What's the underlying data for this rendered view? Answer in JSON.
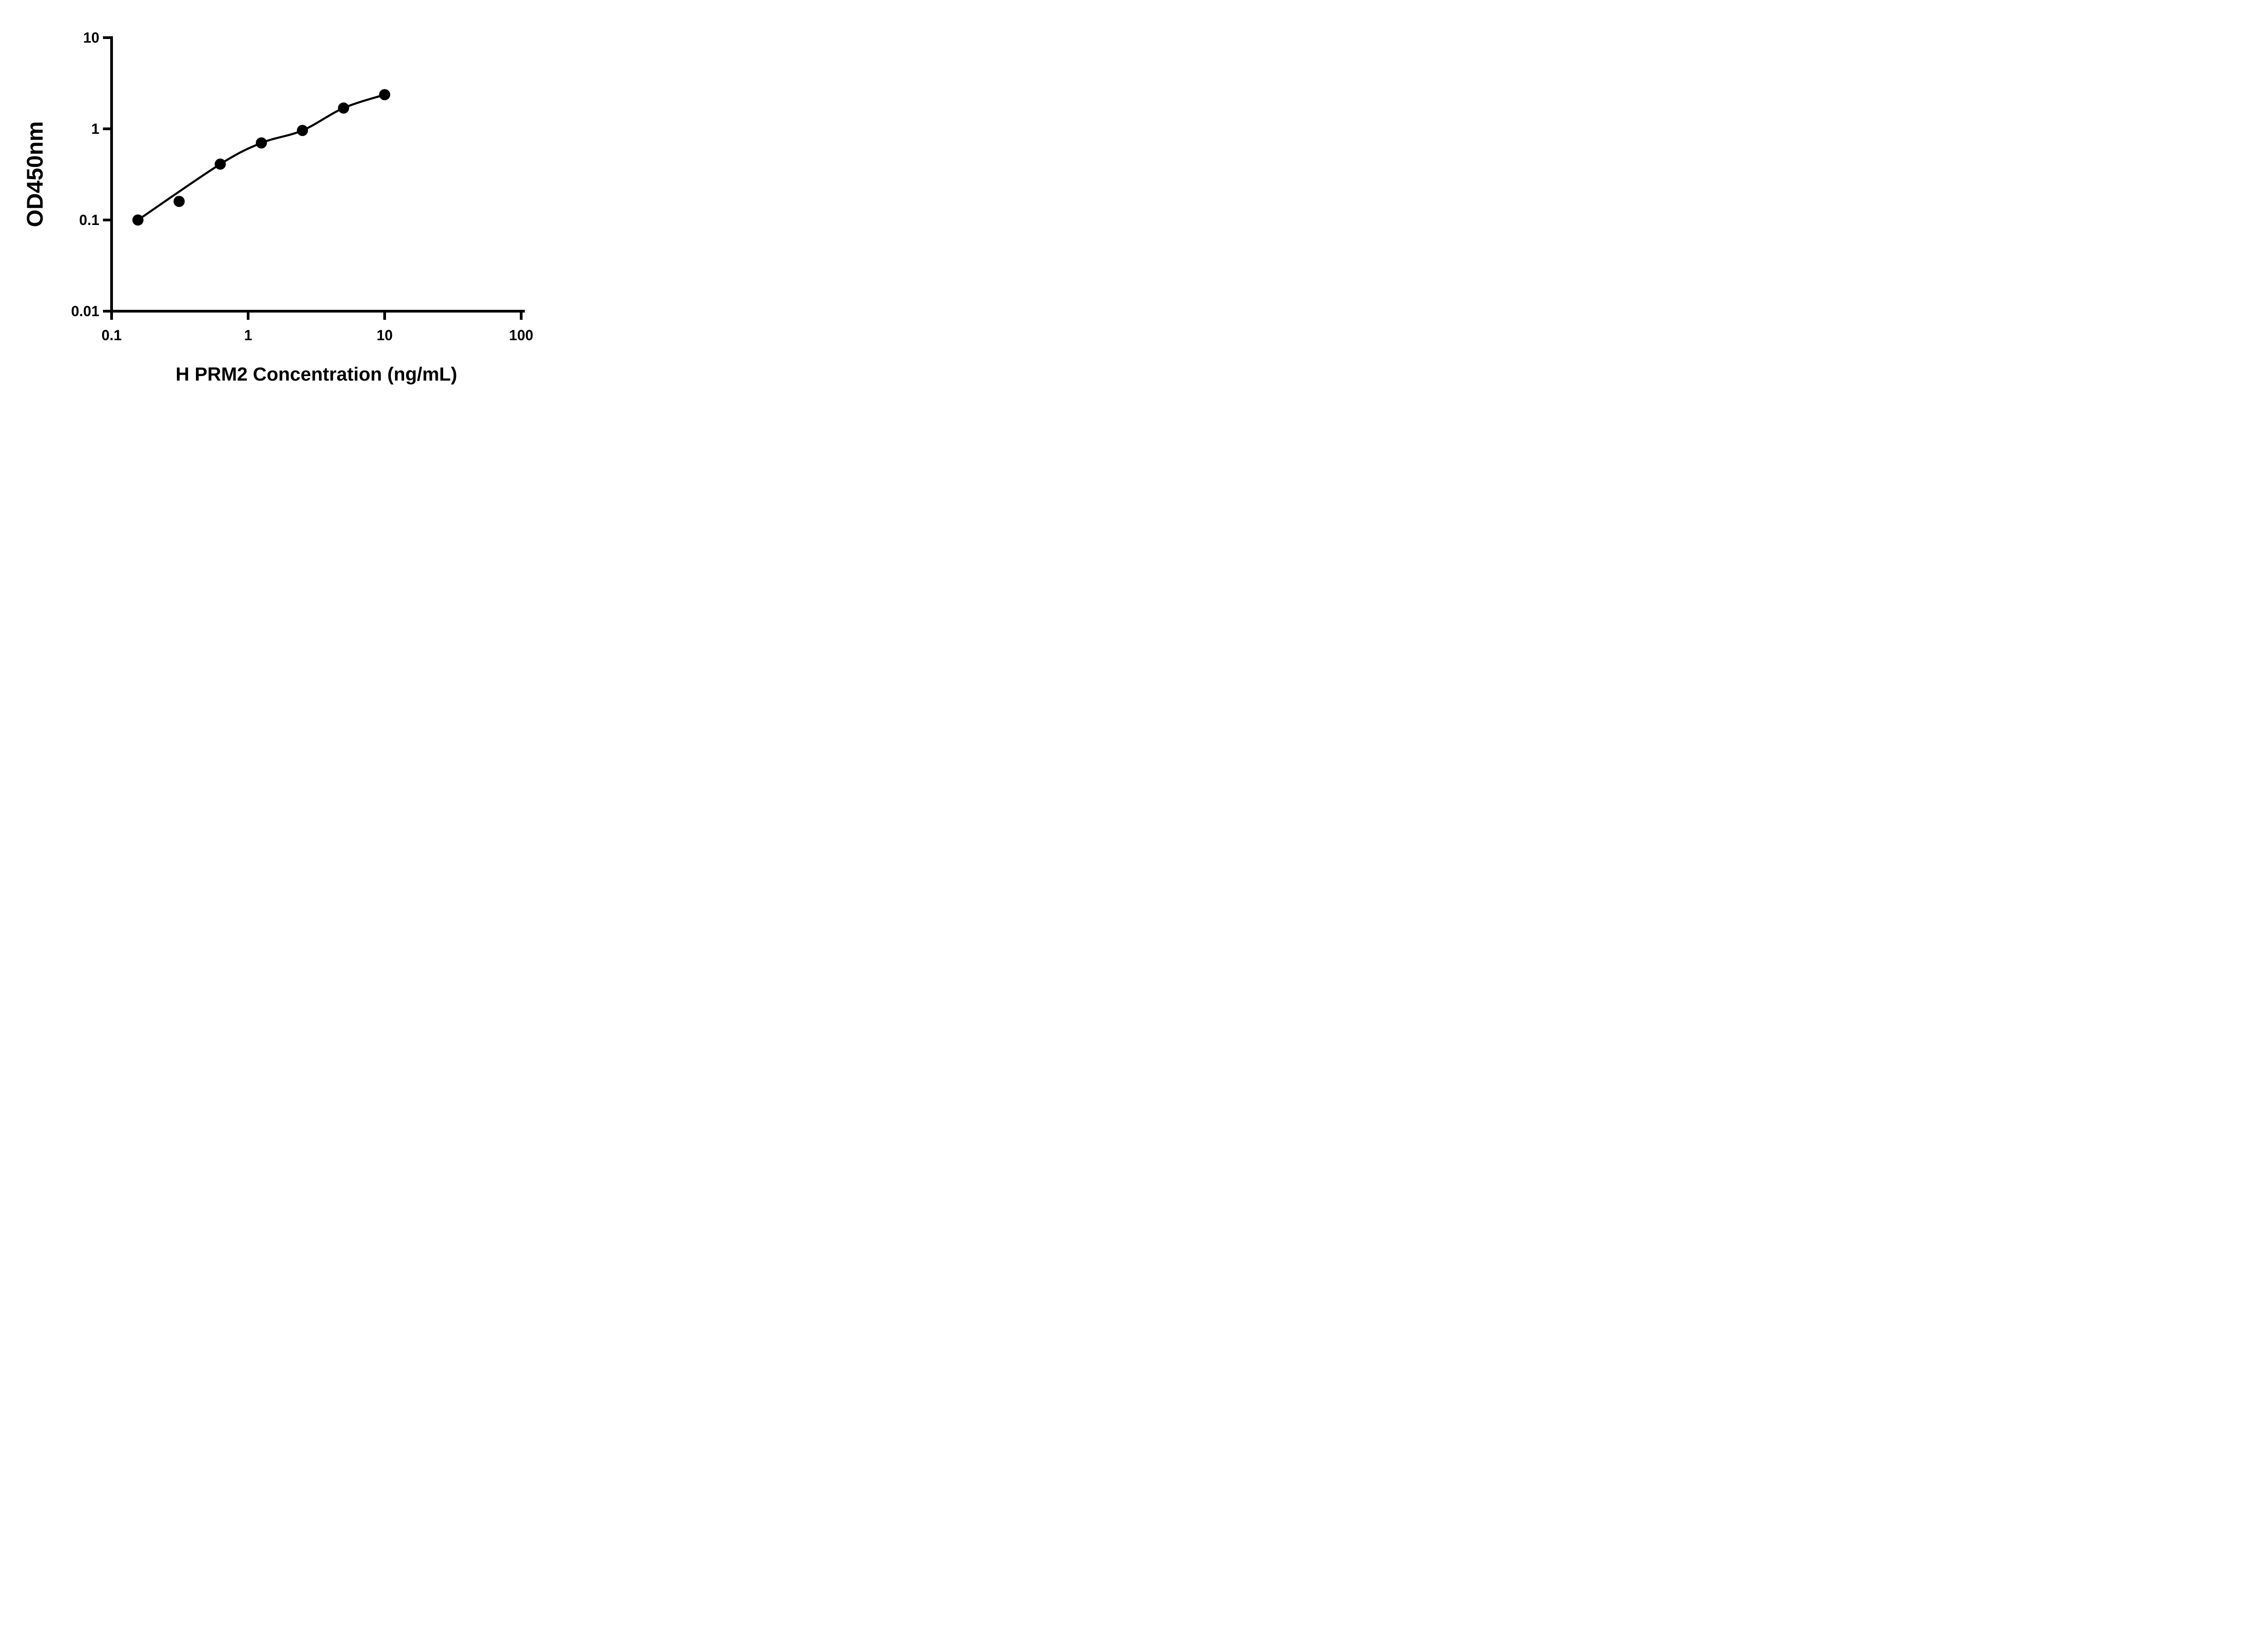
{
  "chart_data": {
    "type": "scatter",
    "title": "",
    "x_axis": {
      "label": "H PRM2 Concentration (ng/mL)",
      "scale": "log10",
      "range": [
        0.1,
        100
      ],
      "ticks": [
        {
          "value": 0.1,
          "label": "0.1"
        },
        {
          "value": 1,
          "label": "1"
        },
        {
          "value": 10,
          "label": "10"
        },
        {
          "value": 100,
          "label": "100"
        }
      ]
    },
    "y_axis": {
      "label": "OD450nm",
      "scale": "log10",
      "range": [
        0.01,
        10
      ],
      "ticks": [
        {
          "value": 10,
          "label": "10"
        },
        {
          "value": 1,
          "label": "1"
        },
        {
          "value": 0.1,
          "label": "0.1"
        },
        {
          "value": 0.01,
          "label": "0.01"
        }
      ]
    },
    "series": [
      {
        "marker": "filled-circle",
        "line": "smooth fitted standard curve",
        "points": [
          {
            "x": 0.156,
            "y": 0.1
          },
          {
            "x": 0.3125,
            "y": 0.16
          },
          {
            "x": 0.625,
            "y": 0.41
          },
          {
            "x": 1.25,
            "y": 0.7
          },
          {
            "x": 2.5,
            "y": 0.96
          },
          {
            "x": 5,
            "y": 1.69
          },
          {
            "x": 10,
            "y": 2.37
          }
        ]
      }
    ],
    "legend": null,
    "grid": "off",
    "colors": {
      "foreground": "#000000",
      "background": "#ffffff"
    }
  }
}
